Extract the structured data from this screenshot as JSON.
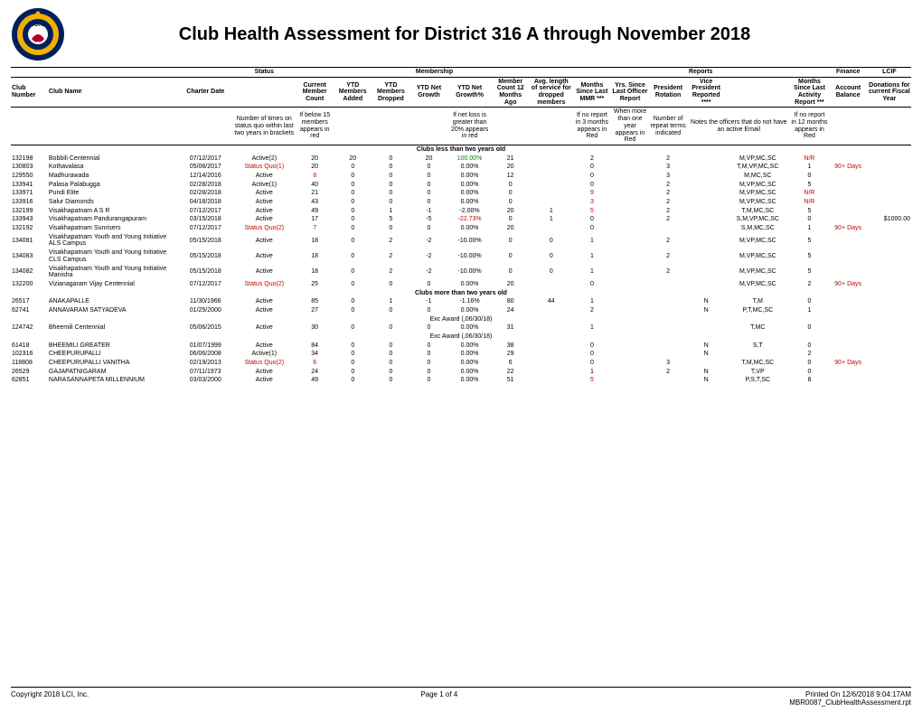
{
  "title": "Club Health Assessment for District 316 A through November 2018",
  "group_headers": {
    "status": "Status",
    "membership": "Membership",
    "reports": "Reports",
    "finance": "Finance",
    "lcif": "LCIF"
  },
  "col": {
    "clubnum": "Club Number",
    "clubname": "Club Name",
    "charter": "Charter Date",
    "status": "",
    "curr": "Current Member Count",
    "added": "YTD Members Added",
    "dropped": "YTD Members Dropped",
    "netg": "YTD Net Growth",
    "netpct": "YTD Net Growth%",
    "c12": "Member Count 12 Months Ago",
    "avg": "Avg. length of service for dropped members",
    "mmr": "Months Since Last MMR ***",
    "yrs": "Yrs. Since Last Officer Report",
    "pres": "President Rotation",
    "vp": "Vice President Reported ****",
    "act": "Months Since Last Activity Report ***",
    "bal": "Account Balance",
    "don": "Donations for current Fiscal Year"
  },
  "notes": {
    "status": "Number of times on status quo within last two years in brackets",
    "curr": "If below 15 members appears in red",
    "netpct": "If net loss is greater than 20% appears in red",
    "mmr": "If no report in 3 months appears in Red",
    "yrs": "When more than one year appears in Red",
    "pres": "Number of repeat terms indicated",
    "vp": "Notes the officers that do not have an active Email",
    "act": "If no report in 12 months appears in Red"
  },
  "sections": [
    {
      "title": "Clubs less than two years old",
      "rows": [
        {
          "num": "132198",
          "name": "Bobbili Centennial",
          "chart": "07/12/2017",
          "stat": "Active(2)",
          "curr": "20",
          "add": "20",
          "drop": "0",
          "net": "20",
          "pct": "100.00%",
          "c12": "21",
          "avg": "",
          "mmr": "2",
          "yrs": "",
          "pres": "2",
          "vp": "",
          "off": "M,VP,MC,SC",
          "act": "N/R",
          "bal": "",
          "don": ""
        },
        {
          "num": "130803",
          "name": "Kothavalasa",
          "chart": "05/08/2017",
          "stat": "Status Quo(1)",
          "stat_red": true,
          "curr": "20",
          "add": "0",
          "drop": "0",
          "net": "0",
          "pct": "0.00%",
          "c12": "20",
          "avg": "",
          "mmr": "0",
          "yrs": "",
          "pres": "3",
          "vp": "",
          "off": "T,M,VP,MC,SC",
          "act": "1",
          "bal": "90+ Days",
          "bal_red": true,
          "don": ""
        },
        {
          "num": "129550",
          "name": "Madhurawada",
          "chart": "12/14/2016",
          "stat": "Active",
          "curr": "8",
          "curr_red": true,
          "add": "0",
          "drop": "0",
          "net": "0",
          "pct": "0.00%",
          "c12": "12",
          "avg": "",
          "mmr": "0",
          "yrs": "",
          "pres": "3",
          "vp": "",
          "off": "M,MC,SC",
          "act": "0",
          "bal": "",
          "don": ""
        },
        {
          "num": "133941",
          "name": "Palasa Palabugga",
          "chart": "02/28/2018",
          "stat": "Active(1)",
          "curr": "40",
          "add": "0",
          "drop": "0",
          "net": "0",
          "pct": "0.00%",
          "c12": "0",
          "avg": "",
          "mmr": "0",
          "yrs": "",
          "pres": "2",
          "vp": "",
          "off": "M,VP,MC,SC",
          "act": "5",
          "bal": "",
          "don": ""
        },
        {
          "num": "133971",
          "name": "Pundi Elite",
          "chart": "02/28/2018",
          "stat": "Active",
          "curr": "21",
          "add": "0",
          "drop": "0",
          "net": "0",
          "pct": "0.00%",
          "c12": "0",
          "avg": "",
          "mmr": "9",
          "mmr_red": true,
          "yrs": "",
          "pres": "2",
          "vp": "",
          "off": "M,VP,MC,SC",
          "act": "N/R",
          "act_red": true,
          "bal": "",
          "don": ""
        },
        {
          "num": "133916",
          "name": "Salur Diamonds",
          "chart": "04/18/2018",
          "stat": "Active",
          "curr": "43",
          "add": "0",
          "drop": "0",
          "net": "0",
          "pct": "0.00%",
          "c12": "0",
          "avg": "",
          "mmr": "3",
          "mmr_red": true,
          "yrs": "",
          "pres": "2",
          "vp": "",
          "off": "M,VP,MC,SC",
          "act": "N/R",
          "act_red": true,
          "bal": "",
          "don": ""
        },
        {
          "num": "132199",
          "name": "Visakhapatnam A  S  R",
          "chart": "07/12/2017",
          "stat": "Active",
          "curr": "49",
          "add": "0",
          "drop": "1",
          "net": "-1",
          "pct": "-2.00%",
          "c12": "20",
          "avg": "1",
          "mmr": "5",
          "mmr_red": true,
          "yrs": "",
          "pres": "2",
          "vp": "",
          "off": "T,M,MC,SC",
          "act": "5",
          "bal": "",
          "don": ""
        },
        {
          "num": "133943",
          "name": "Visakhapatnam Pandurangapuram",
          "chart": "03/15/2018",
          "stat": "Active",
          "curr": "17",
          "add": "0",
          "drop": "5",
          "net": "-5",
          "pct": "-22.73%",
          "pct_red": true,
          "c12": "0",
          "avg": "1",
          "mmr": "0",
          "yrs": "",
          "pres": "2",
          "vp": "",
          "off": "S,M,VP,MC,SC",
          "act": "0",
          "bal": "",
          "don": "$1000.00"
        },
        {
          "num": "132192",
          "name": "Visakhapatnam Sunrisers",
          "chart": "07/12/2017",
          "stat": "Status Quo(2)",
          "stat_red": true,
          "curr": "7",
          "curr_red": true,
          "add": "0",
          "drop": "0",
          "net": "0",
          "pct": "0.00%",
          "c12": "20",
          "avg": "",
          "mmr": "0",
          "yrs": "",
          "pres": "",
          "vp": "",
          "off": "S,M,MC,SC",
          "act": "1",
          "bal": "90+ Days",
          "bal_red": true,
          "don": ""
        },
        {
          "num": "134081",
          "name": "Visakhapatnam Youth and Young Initiative ALS Campus",
          "chart": "05/15/2018",
          "stat": "Active",
          "curr": "18",
          "add": "0",
          "drop": "2",
          "net": "-2",
          "pct": "-10.00%",
          "c12": "0",
          "avg": "0",
          "mmr": "1",
          "yrs": "",
          "pres": "2",
          "vp": "",
          "off": "M,VP,MC,SC",
          "act": "5",
          "bal": "",
          "don": ""
        },
        {
          "num": "134083",
          "name": "Visakhapatnam Youth and Young Initiative CLS Campus",
          "chart": "05/15/2018",
          "stat": "Active",
          "curr": "18",
          "add": "0",
          "drop": "2",
          "net": "-2",
          "pct": "-10.00%",
          "c12": "0",
          "avg": "0",
          "mmr": "1",
          "yrs": "",
          "pres": "2",
          "vp": "",
          "off": "M,VP,MC,SC",
          "act": "5",
          "bal": "",
          "don": ""
        },
        {
          "num": "134082",
          "name": "Visakhapatnam Youth and Young Initiative Manisha",
          "chart": "05/15/2018",
          "stat": "Active",
          "curr": "18",
          "add": "0",
          "drop": "2",
          "net": "-2",
          "pct": "-10.00%",
          "c12": "0",
          "avg": "0",
          "mmr": "1",
          "yrs": "",
          "pres": "2",
          "vp": "",
          "off": "M,VP,MC,SC",
          "act": "5",
          "bal": "",
          "don": ""
        },
        {
          "num": "132200",
          "name": "Vizianagaram Vijay Centennial",
          "chart": "07/12/2017",
          "stat": "Status Quo(2)",
          "stat_red": true,
          "curr": "25",
          "add": "0",
          "drop": "0",
          "net": "0",
          "pct": "0.00%",
          "c12": "20",
          "avg": "",
          "mmr": "0",
          "yrs": "",
          "pres": "",
          "vp": "",
          "off": "M,VP,MC,SC",
          "act": "2",
          "bal": "90+ Days",
          "bal_red": true,
          "don": ""
        }
      ]
    },
    {
      "title": "Clubs more than two years old",
      "rows": [
        {
          "num": "26517",
          "name": "ANAKAPALLE",
          "chart": "11/30/1966",
          "stat": "Active",
          "curr": "85",
          "add": "0",
          "drop": "1",
          "net": "-1",
          "pct": "-1.16%",
          "c12": "80",
          "avg": "44",
          "mmr": "1",
          "yrs": "",
          "pres": "",
          "vp": "N",
          "off": "T,M",
          "act": "0",
          "bal": "",
          "don": ""
        },
        {
          "num": "62741",
          "name": "ANNAVARAM SATYADEVA",
          "chart": "01/25/2000",
          "stat": "Active",
          "curr": "27",
          "add": "0",
          "drop": "0",
          "net": "0",
          "pct": "0.00%",
          "c12": "24",
          "avg": "",
          "mmr": "2",
          "yrs": "",
          "pres": "",
          "vp": "N",
          "off": "P,T,MC,SC",
          "act": "1",
          "bal": "",
          "don": "",
          "sub": "Exc Award (,06/30/18)"
        },
        {
          "num": "124742",
          "name": "Bheemili Centennial",
          "chart": "05/06/2015",
          "stat": "Active",
          "curr": "30",
          "add": "0",
          "drop": "0",
          "net": "0",
          "pct": "0.00%",
          "c12": "31",
          "avg": "",
          "mmr": "1",
          "yrs": "",
          "pres": "",
          "vp": "",
          "off": "T,MC",
          "act": "0",
          "bal": "",
          "don": "",
          "sub": "Exc Award (,06/30/18)"
        },
        {
          "num": "61418",
          "name": "BHEEMILI GREATER",
          "chart": "01/07/1999",
          "stat": "Active",
          "curr": "84",
          "add": "0",
          "drop": "0",
          "net": "0",
          "pct": "0.00%",
          "c12": "38",
          "avg": "",
          "mmr": "0",
          "yrs": "",
          "pres": "",
          "vp": "N",
          "off": "S,T",
          "act": "0",
          "bal": "",
          "don": ""
        },
        {
          "num": "102316",
          "name": "CHEEPURUPALLI",
          "chart": "06/06/2008",
          "stat": "Active(1)",
          "curr": "34",
          "add": "0",
          "drop": "0",
          "net": "0",
          "pct": "0.00%",
          "c12": "29",
          "avg": "",
          "mmr": "0",
          "yrs": "",
          "pres": "",
          "vp": "N",
          "off": "",
          "act": "2",
          "bal": "",
          "don": ""
        },
        {
          "num": "118808",
          "name": "CHEEPURUPALLI VANITHA",
          "chart": "02/19/2013",
          "stat": "Status Quo(2)",
          "stat_red": true,
          "curr": "6",
          "curr_red": true,
          "add": "0",
          "drop": "0",
          "net": "0",
          "pct": "0.00%",
          "c12": "6",
          "avg": "",
          "mmr": "0",
          "yrs": "",
          "pres": "3",
          "vp": "",
          "off": "T,M,MC,SC",
          "act": "0",
          "bal": "90+ Days",
          "bal_red": true,
          "don": ""
        },
        {
          "num": "26529",
          "name": "GAJAPATNIGARAM",
          "chart": "07/11/1973",
          "stat": "Active",
          "curr": "24",
          "add": "0",
          "drop": "0",
          "net": "0",
          "pct": "0.00%",
          "c12": "22",
          "avg": "",
          "mmr": "1",
          "yrs": "",
          "pres": "2",
          "vp": "N",
          "off": "T,VP",
          "act": "0",
          "bal": "",
          "don": ""
        },
        {
          "num": "62851",
          "name": "NARASANNAPETA MILLENNIUM",
          "chart": "03/03/2000",
          "stat": "Active",
          "curr": "49",
          "add": "0",
          "drop": "0",
          "net": "0",
          "pct": "0.00%",
          "c12": "51",
          "avg": "",
          "mmr": "5",
          "mmr_red": true,
          "yrs": "",
          "pres": "",
          "vp": "N",
          "off": "P,S,T,SC",
          "act": "8",
          "bal": "",
          "don": ""
        }
      ]
    }
  ],
  "footer": {
    "copy": "Copyright 2018 LCI, Inc.",
    "page": "Page 1 of 4",
    "printed": "Printed On 12/6/2018  9:04:17AM",
    "file": "MBR0087_ClubHealthAssessment.rpt"
  },
  "colors": {
    "logo_outer": "#00205b",
    "logo_gold": "#f0b000",
    "logo_red": "#b8002a"
  }
}
